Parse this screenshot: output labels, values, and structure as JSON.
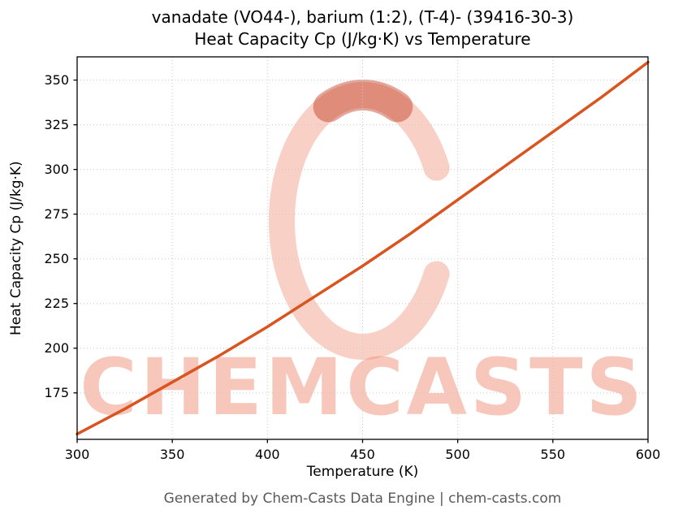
{
  "title_lines": [
    "vanadate (VO44-), barium (1:2), (T-4)- (39416-30-3)",
    "Heat Capacity Cp (J/kg·K) vs Temperature"
  ],
  "footer": "Generated by Chem-Casts Data Engine | chem-casts.com",
  "watermark": {
    "text": "CHEMCASTS",
    "color": "#ef9078",
    "ring_color": "#ef9078",
    "blob_color": "#c23a20"
  },
  "chart_data": {
    "type": "line",
    "title": "vanadate (VO44-), barium (1:2), (T-4)- (39416-30-3) Heat Capacity Cp (J/kg·K) vs Temperature",
    "xlabel": "Temperature (K)",
    "ylabel": "Heat Capacity Cp (J/kg·K)",
    "xlim": [
      300,
      600
    ],
    "ylim": [
      149,
      363
    ],
    "xticks": [
      300,
      350,
      400,
      450,
      500,
      550,
      600
    ],
    "yticks": [
      175,
      200,
      225,
      250,
      275,
      300,
      325,
      350
    ],
    "grid": true,
    "legend": false,
    "line_color": "#d9541f",
    "grid_color": "#c9c9c9",
    "series": [
      {
        "name": "Heat Capacity Cp",
        "x": [
          300,
          325,
          350,
          375,
          400,
          425,
          450,
          475,
          500,
          525,
          550,
          575,
          600
        ],
        "y": [
          152,
          166,
          181,
          196,
          212,
          229,
          246,
          264,
          283,
          302,
          321,
          340,
          360
        ]
      }
    ]
  }
}
